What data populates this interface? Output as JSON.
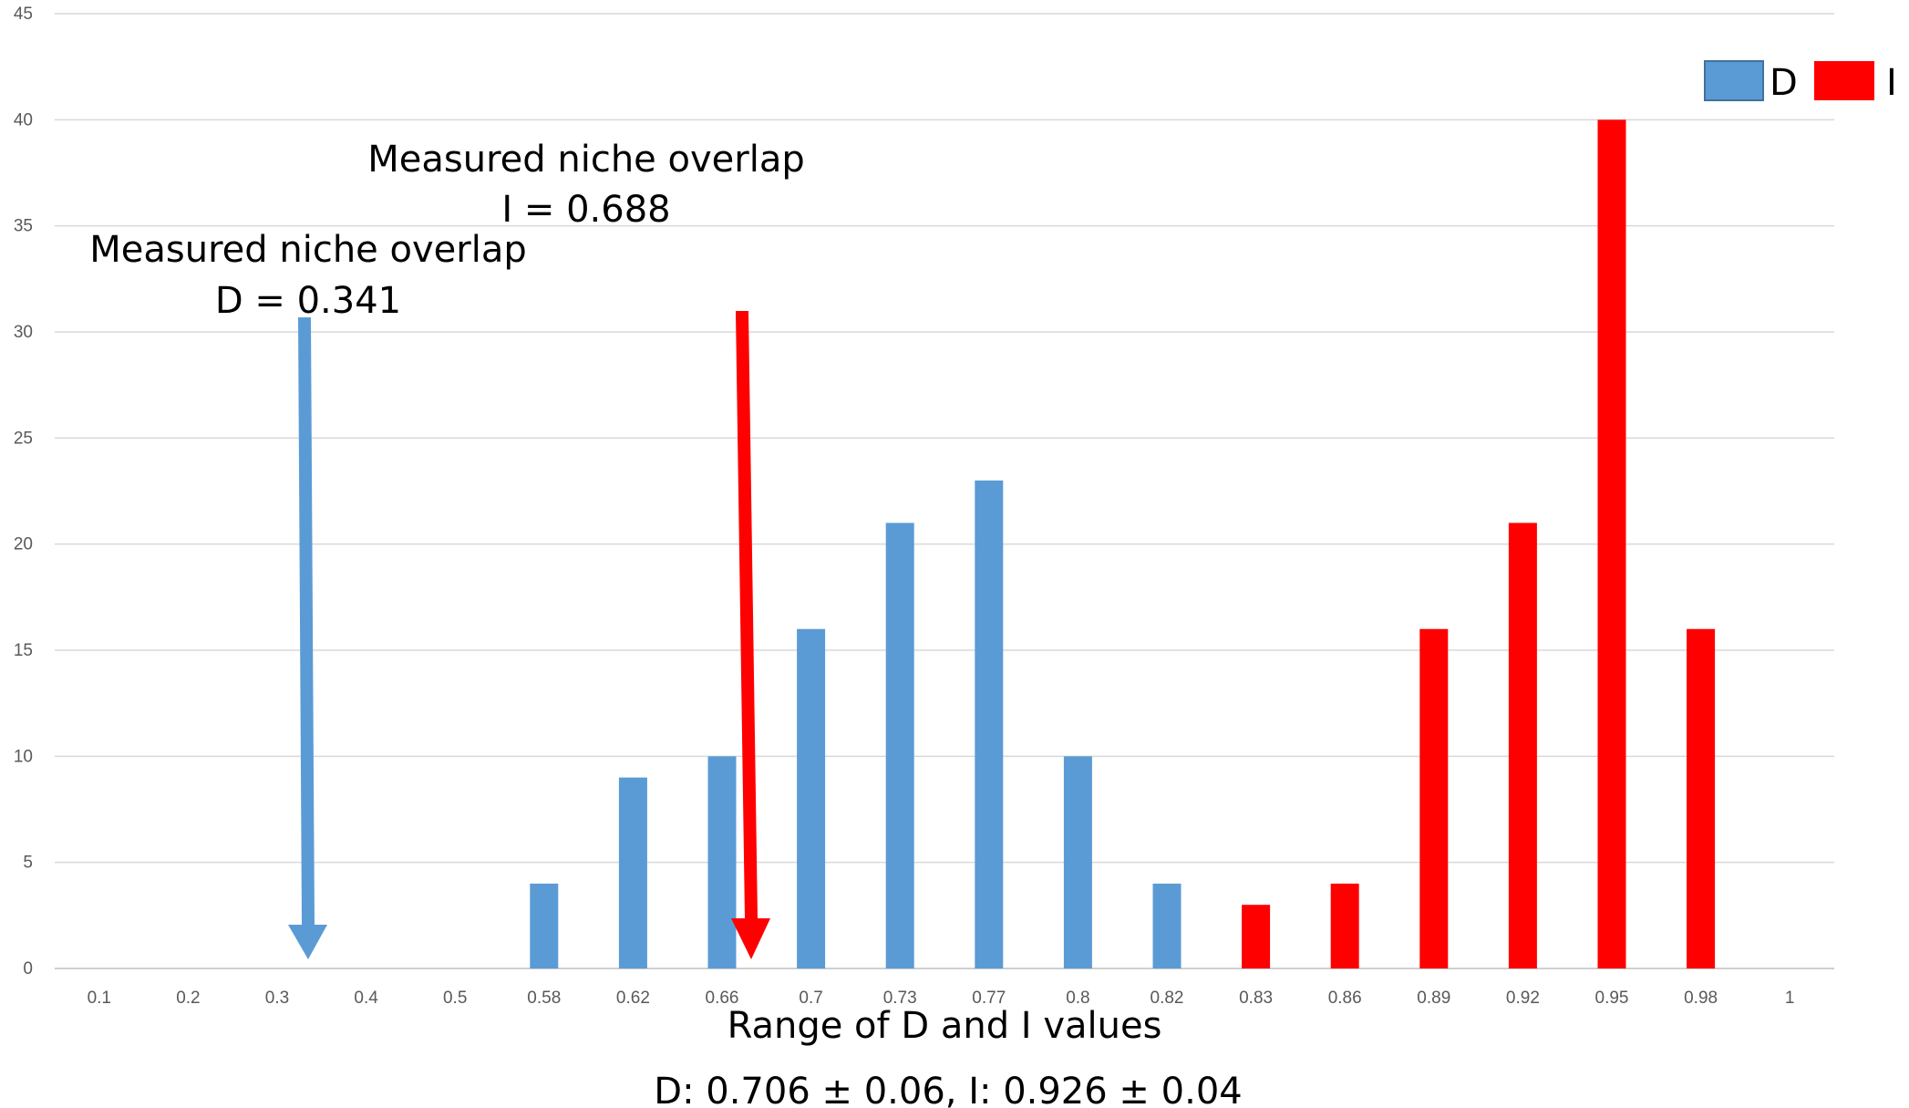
{
  "chart_data": {
    "type": "bar",
    "categories": [
      "0.1",
      "0.2",
      "0.3",
      "0.4",
      "0.5",
      "0.58",
      "0.62",
      "0.66",
      "0.7",
      "0.73",
      "0.77",
      "0.8",
      "0.82",
      "0.83",
      "0.86",
      "0.89",
      "0.92",
      "0.95",
      "0.98",
      "1"
    ],
    "series": [
      {
        "name": "D",
        "color": "#5B9BD5",
        "values": [
          0,
          0,
          0,
          0,
          0,
          4,
          9,
          10,
          16,
          21,
          23,
          10,
          4,
          0,
          0,
          0,
          0,
          0,
          0,
          0
        ]
      },
      {
        "name": "I",
        "color": "#FF0000",
        "values": [
          0,
          0,
          0,
          0,
          0,
          0,
          0,
          0,
          0,
          0,
          0,
          0,
          0,
          3,
          4,
          16,
          21,
          40,
          16,
          0
        ]
      }
    ],
    "ylim": [
      0,
      45
    ],
    "yticks": [
      "0",
      "5",
      "10",
      "15",
      "20",
      "25",
      "30",
      "35",
      "40",
      "45"
    ],
    "xlabel": "Range of D and I values",
    "subtitle": "D: 0.706 ± 0.06, I: 0.926 ± 0.04",
    "grid": true,
    "legend_position": "top-right",
    "annotations": [
      {
        "line1": "Measured niche overlap",
        "line2": "D = 0.341",
        "arrow_color": "#5B9BD5",
        "points_to_x": 0.341
      },
      {
        "line1": "Measured niche overlap",
        "line2": "I = 0.688",
        "arrow_color": "#FF0000",
        "points_to_x": 0.688
      }
    ]
  }
}
